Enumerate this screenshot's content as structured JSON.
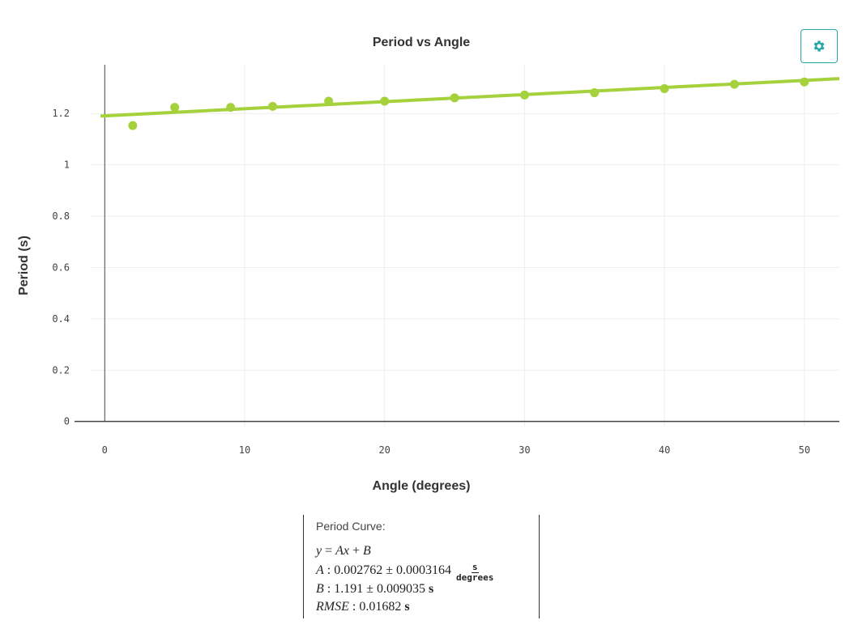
{
  "chart_data": {
    "type": "scatter",
    "title": "Period vs Angle",
    "xlabel": "Angle (degrees)",
    "ylabel": "Period (s)",
    "xlim": [
      -1,
      52.5
    ],
    "ylim": [
      -0.02,
      1.39
    ],
    "xticks": [
      0,
      10,
      20,
      30,
      40,
      50
    ],
    "yticks": [
      0,
      0.2,
      0.4,
      0.6,
      0.8,
      1,
      1.2
    ],
    "ytick_labels": [
      "0",
      "0.2",
      "0.4",
      "0.6",
      "0.8",
      "1",
      "1.2"
    ],
    "grid": true,
    "series": [
      {
        "name": "Period",
        "x": [
          2,
          5,
          9,
          12,
          16,
          20,
          25,
          30,
          35,
          40,
          45,
          50
        ],
        "y": [
          1.153,
          1.224,
          1.224,
          1.228,
          1.248,
          1.248,
          1.261,
          1.272,
          1.281,
          1.297,
          1.314,
          1.323
        ]
      }
    ],
    "fit": {
      "name": "Period Curve",
      "slope": 0.002762,
      "intercept": 1.191
    },
    "colors": {
      "points": "#a5d13c",
      "fit_line": "#a5d13c",
      "grid": "#eeeeee",
      "axis": "#444444"
    }
  },
  "settings_icon": "gear-icon",
  "accent_color": "#26a6a6",
  "fit_panel": {
    "title": "Period Curve:",
    "equation": {
      "y": "y",
      "eq": " = ",
      "ax": "Ax",
      "plus": " + ",
      "b": "B"
    },
    "a": {
      "label": "A",
      "sep": " : ",
      "value": "0.002762 ± 0.0003164",
      "unit_num": "s",
      "unit_den": "degrees"
    },
    "b": {
      "label": "B",
      "sep": " : ",
      "value": "1.191 ± 0.009035",
      "unit": "s"
    },
    "rmse": {
      "label": "RMSE",
      "sep": " : ",
      "value": "0.01682",
      "unit": "s"
    }
  }
}
